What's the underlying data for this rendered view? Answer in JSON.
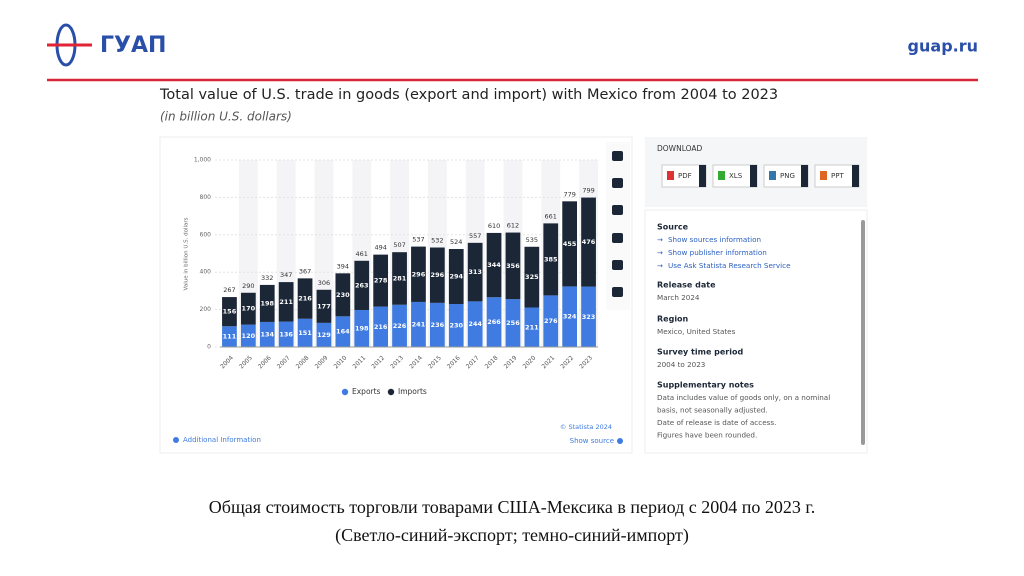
{
  "header": {
    "logo": "ГУАП",
    "site": "guap.ru"
  },
  "chart_data": {
    "type": "bar",
    "stacked": true,
    "title": "Total value of U.S. trade in goods (export and import) with Mexico from 2004 to 2023",
    "subtitle": "(in billion U.S. dollars)",
    "y_label": "Value in billion U.S. dollars",
    "categories": [
      "2004",
      "2005",
      "2006",
      "2007",
      "2008",
      "2009",
      "2010",
      "2011",
      "2012",
      "2013",
      "2014",
      "2015",
      "2016",
      "2017",
      "2018",
      "2019",
      "2020",
      "2021",
      "2022",
      "2023"
    ],
    "series": [
      {
        "name": "Exports",
        "color": "#3f7be0",
        "values": [
          111,
          120,
          134,
          136,
          151,
          129,
          164,
          198,
          216,
          226,
          241,
          236,
          230,
          244,
          266,
          256,
          211,
          276,
          324,
          323
        ]
      },
      {
        "name": "Imports",
        "color": "#1b2636",
        "values": [
          156,
          170,
          198,
          211,
          216,
          177,
          230,
          263,
          278,
          281,
          296,
          296,
          294,
          313,
          344,
          356,
          325,
          385,
          455,
          476
        ]
      }
    ],
    "totals": [
      267,
      290,
      332,
      347,
      367,
      306,
      394,
      461,
      494,
      507,
      537,
      532,
      524,
      557,
      610,
      612,
      535,
      661,
      779,
      799
    ],
    "ylim": [
      0,
      1000
    ],
    "yticks": [
      0,
      200,
      400,
      600,
      800,
      {
        "value": 1000,
        "label": "1,000"
      }
    ],
    "legend": "bottom",
    "copyright": "© Statista 2024",
    "additional": "Additional Information",
    "show_source": "Show source"
  },
  "sidebar": {
    "download": "DOWNLOAD",
    "formats": [
      "PDF",
      "XLS",
      "PNG",
      "PPT"
    ],
    "source_heading": "Source",
    "source_links": [
      "Show sources information",
      "Show publisher information",
      "Use Ask Statista Research Service"
    ],
    "release_heading": "Release date",
    "release": "March 2024",
    "region_heading": "Region",
    "region": "Mexico, United States",
    "period_heading": "Survey time period",
    "period": "2004 to 2023",
    "notes_heading": "Supplementary notes",
    "notes": [
      "Data includes value of goods only, on a nominal",
      "basis, not seasonally adjusted.",
      "Date of release is date of access.",
      "Figures have been rounded."
    ]
  },
  "caption": [
    "Общая стоимость торговли товарами США-Мексика в период с 2004 по 2023 г.",
    "(Светло-синий-экспорт; темно-синий-импорт)"
  ]
}
